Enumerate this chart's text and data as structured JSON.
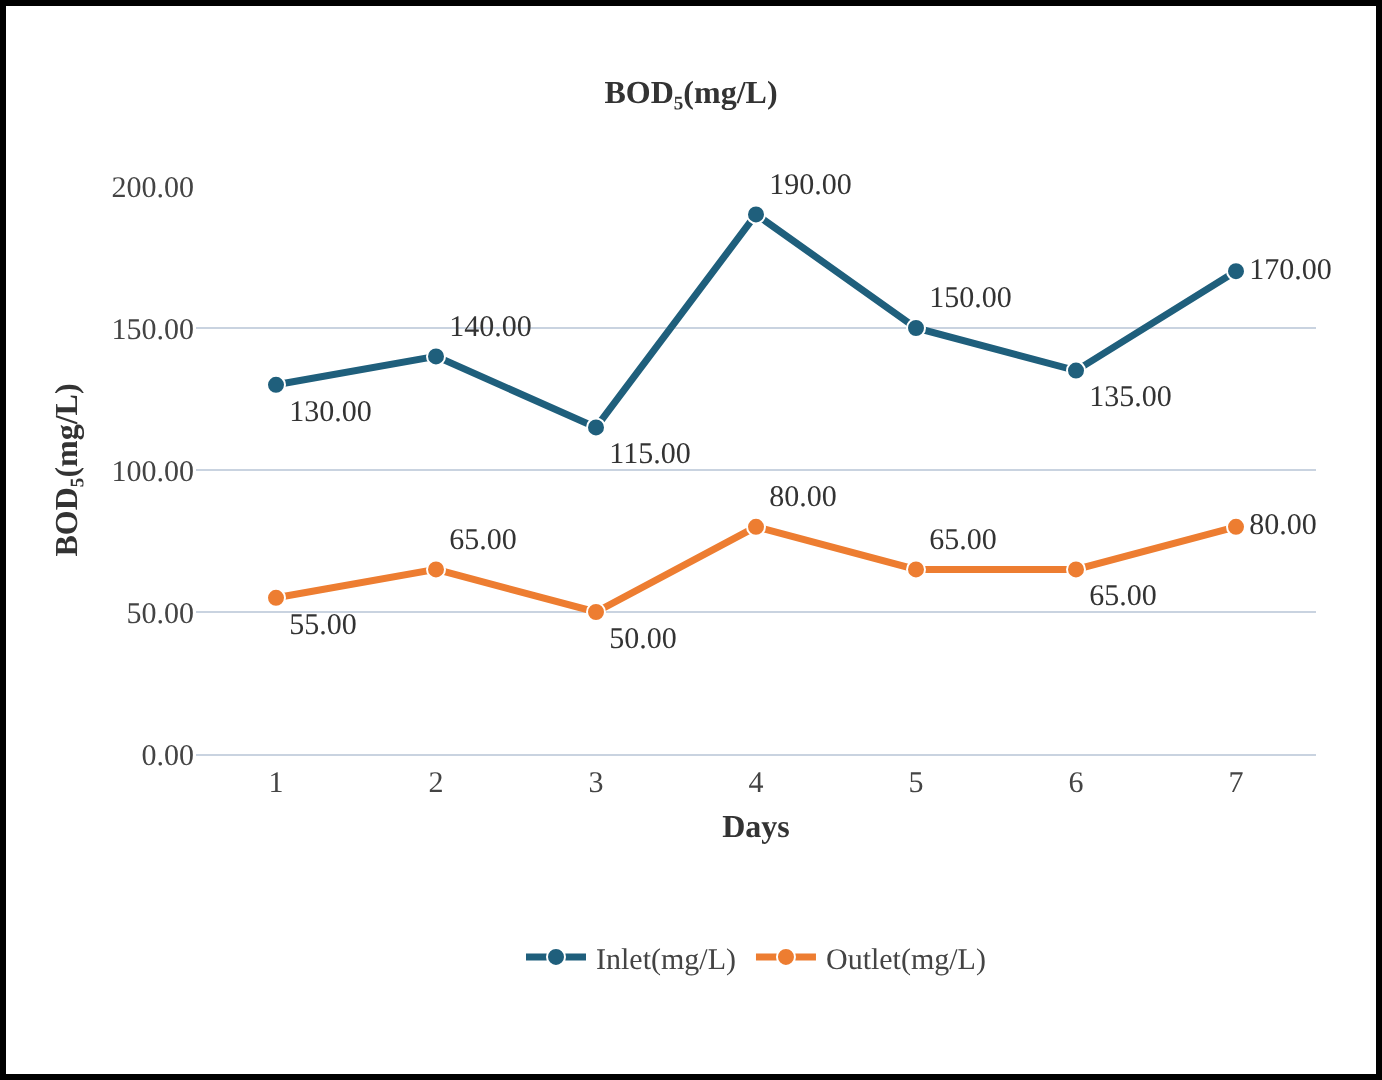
{
  "chart_data": {
    "type": "line",
    "title": "BOD₅(mg/L)",
    "xlabel": "Days",
    "ylabel": "BOD₅(mg/L)",
    "categories": [
      "1",
      "2",
      "3",
      "4",
      "5",
      "6",
      "7"
    ],
    "series": [
      {
        "name": "Inlet(mg/L)",
        "color": "#1f5f7c",
        "values": [
          130,
          140,
          115,
          190,
          150,
          135,
          170
        ],
        "value_labels": [
          "130.00",
          "140.00",
          "115.00",
          "190.00",
          "150.00",
          "135.00",
          "170.00"
        ]
      },
      {
        "name": "Outlet(mg/L)",
        "color": "#ed7d31",
        "values": [
          55,
          65,
          50,
          80,
          65,
          65,
          80
        ],
        "value_labels": [
          "55.00",
          "65.00",
          "50.00",
          "80.00",
          "65.00",
          "65.00",
          "80.00"
        ]
      }
    ],
    "ylim": [
      0,
      200
    ],
    "yticks": [
      {
        "value": 0,
        "label": "0.00"
      },
      {
        "value": 50,
        "label": "50.00"
      },
      {
        "value": 100,
        "label": "100.00"
      },
      {
        "value": 150,
        "label": "150.00"
      },
      {
        "value": 200,
        "label": "200.00"
      }
    ],
    "grid": "y",
    "legend": "bottom",
    "marker": "circle",
    "line_style": "solid"
  }
}
